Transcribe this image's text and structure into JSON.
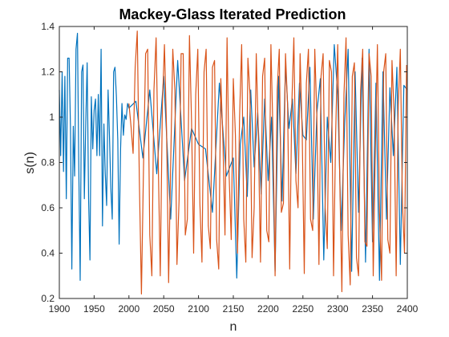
{
  "chart_data": {
    "type": "line",
    "title": "Mackey-Glass Iterated Prediction",
    "xlabel": "n",
    "ylabel": "s(n)",
    "xlim": [
      1900,
      2400
    ],
    "ylim": [
      0.2,
      1.4
    ],
    "xticks": [
      "1900",
      "1950",
      "2000",
      "2050",
      "2100",
      "2150",
      "2200",
      "2250",
      "2300",
      "2350",
      "2400"
    ],
    "yticks": [
      "0.2",
      "0.4",
      "0.6",
      "0.8",
      "1",
      "1.2",
      "1.4"
    ],
    "grid": false,
    "series": [
      {
        "color": "#0072BD",
        "x": [
          1900,
          1902,
          1904,
          1906,
          1908,
          1910,
          1912,
          1914,
          1916,
          1918,
          1920,
          1922,
          1924,
          1926,
          1928,
          1930,
          1932,
          1934,
          1936,
          1938,
          1940,
          1942,
          1944,
          1946,
          1948,
          1950,
          1952,
          1954,
          1956,
          1958,
          1960,
          1962,
          1964,
          1966,
          1968,
          1970,
          1972,
          1974,
          1976,
          1978,
          1980,
          1982,
          1984,
          1986,
          1988,
          1990,
          1992,
          1994,
          1996,
          1998,
          2000,
          2010,
          2020,
          2030,
          2040,
          2050,
          2060,
          2070,
          2080,
          2090,
          2100,
          2110,
          2120,
          2130,
          2140,
          2150,
          2155,
          2160,
          2165,
          2170,
          2175,
          2180,
          2185,
          2190,
          2195,
          2200,
          2205,
          2210,
          2215,
          2220,
          2225,
          2230,
          2235,
          2240,
          2245,
          2250,
          2255,
          2260,
          2265,
          2270,
          2275,
          2280,
          2285,
          2290,
          2295,
          2300,
          2305,
          2310,
          2315,
          2320,
          2325,
          2330,
          2335,
          2340,
          2345,
          2350,
          2355,
          2360,
          2365,
          2370,
          2375,
          2380,
          2385,
          2390,
          2395,
          2400
        ],
        "values": [
          1.12,
          0.83,
          1.2,
          0.76,
          1.18,
          0.64,
          1.26,
          1.26,
          0.95,
          0.33,
          0.96,
          0.74,
          1.3,
          1.37,
          0.77,
          0.28,
          1.2,
          1.23,
          0.64,
          0.98,
          1.24,
          0.64,
          0.37,
          1.09,
          0.86,
          1.03,
          1.08,
          0.83,
          1.1,
          0.83,
          1.3,
          0.52,
          0.97,
          0.75,
          0.61,
          1.12,
          0.92,
          0.69,
          0.55,
          1.2,
          1.22,
          1.09,
          0.9,
          0.44,
          0.86,
          1.06,
          0.92,
          1.01,
          0.99,
          1.06,
          1.04,
          1.07,
          0.82,
          1.12,
          0.75,
          1.18,
          0.55,
          1.25,
          0.72,
          0.95,
          0.88,
          0.86,
          0.58,
          1.15,
          0.74,
          0.82,
          0.29,
          0.88,
          1.0,
          0.65,
          1.12,
          0.78,
          1.02,
          0.66,
          1.08,
          0.72,
          1.0,
          0.32,
          1.18,
          0.63,
          1.23,
          0.95,
          1.08,
          0.75,
          1.15,
          0.92,
          0.9,
          1.22,
          0.55,
          1.02,
          1.17,
          0.37,
          1.0,
          0.8,
          1.32,
          1.1,
          0.5,
          0.97,
          1.3,
          0.32,
          1.2,
          0.58,
          1.26,
          0.36,
          1.3,
          0.45,
          1.15,
          0.28,
          1.2,
          0.55,
          1.13,
          0.83,
          1.22,
          0.35,
          1.14,
          1.12
        ]
      },
      {
        "color": "#D95319",
        "x": [
          2000,
          2003,
          2006,
          2009,
          2012,
          2015,
          2018,
          2021,
          2024,
          2027,
          2030,
          2033,
          2036,
          2039,
          2042,
          2045,
          2048,
          2051,
          2054,
          2057,
          2060,
          2063,
          2066,
          2069,
          2072,
          2075,
          2078,
          2081,
          2084,
          2087,
          2090,
          2093,
          2096,
          2099,
          2102,
          2105,
          2108,
          2111,
          2114,
          2117,
          2120,
          2123,
          2126,
          2129,
          2132,
          2135,
          2138,
          2141,
          2144,
          2147,
          2150,
          2153,
          2156,
          2159,
          2162,
          2165,
          2168,
          2171,
          2174,
          2177,
          2180,
          2183,
          2186,
          2189,
          2192,
          2195,
          2198,
          2201,
          2204,
          2207,
          2210,
          2213,
          2216,
          2219,
          2222,
          2225,
          2228,
          2231,
          2234,
          2237,
          2240,
          2243,
          2246,
          2249,
          2252,
          2255,
          2258,
          2261,
          2264,
          2267,
          2270,
          2273,
          2276,
          2279,
          2282,
          2285,
          2288,
          2291,
          2294,
          2297,
          2300,
          2303,
          2306,
          2309,
          2312,
          2315,
          2318,
          2321,
          2324,
          2327,
          2330,
          2333,
          2336,
          2339,
          2342,
          2345,
          2348,
          2351,
          2354,
          2357,
          2360,
          2363,
          2366,
          2369,
          2372,
          2375,
          2378,
          2381,
          2384,
          2387,
          2390,
          2393,
          2396,
          2399
        ],
        "values": [
          1.06,
          0.96,
          0.84,
          1.22,
          1.38,
          0.72,
          0.22,
          0.78,
          1.28,
          1.3,
          0.48,
          0.3,
          1.12,
          1.35,
          0.82,
          0.3,
          1.05,
          1.32,
          0.95,
          0.27,
          0.8,
          1.3,
          1.12,
          0.35,
          0.63,
          1.28,
          1.28,
          0.48,
          0.55,
          1.36,
          0.98,
          0.4,
          1.1,
          1.3,
          0.62,
          0.36,
          1.2,
          1.3,
          0.52,
          0.42,
          1.22,
          1.25,
          0.46,
          0.33,
          1.17,
          0.9,
          0.48,
          1.35,
          0.74,
          0.46,
          1.17,
          0.92,
          0.4,
          1.0,
          1.32,
          0.55,
          0.36,
          1.26,
          1.1,
          0.38,
          0.6,
          1.28,
          0.92,
          0.36,
          1.18,
          1.26,
          0.5,
          0.45,
          1.32,
          0.92,
          0.3,
          1.12,
          1.3,
          0.58,
          0.62,
          1.28,
          1.05,
          0.33,
          1.05,
          1.35,
          0.72,
          0.6,
          1.28,
          0.93,
          0.31,
          1.15,
          1.3,
          0.55,
          0.5,
          1.3,
          1.0,
          0.35,
          1.18,
          1.28,
          0.6,
          0.42,
          1.25,
          1.2,
          0.3,
          0.92,
          1.32,
          0.72,
          0.23,
          1.1,
          1.35,
          0.48,
          0.26,
          1.18,
          1.24,
          0.38,
          0.3,
          1.12,
          1.3,
          0.45,
          0.43,
          1.28,
          1.18,
          0.3,
          0.85,
          1.32,
          0.58,
          0.28,
          1.2,
          1.28,
          0.46,
          0.4,
          1.25,
          1.02,
          0.3,
          1.05,
          1.3,
          0.62,
          0.4,
          1.23
        ]
      }
    ]
  }
}
